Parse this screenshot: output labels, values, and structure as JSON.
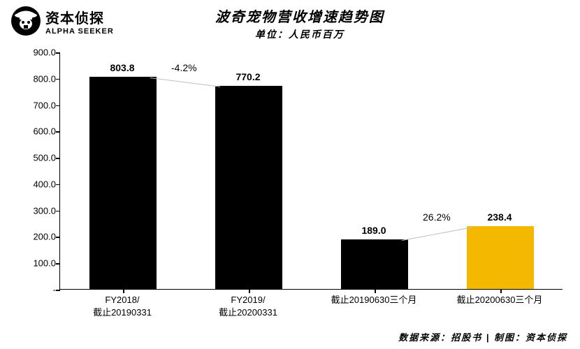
{
  "logo": {
    "cn": "资本侦探",
    "en": "ALPHA SEEKER"
  },
  "title": "波奇宠物营收增速趋势图",
  "subtitle": "单位：人民币百万",
  "chart": {
    "type": "bar",
    "ylim": [
      0,
      900
    ],
    "ytick_step": 100,
    "yticks": [
      "-",
      "100.0",
      "200.0",
      "300.0",
      "400.0",
      "500.0",
      "600.0",
      "700.0",
      "800.0",
      "900.0"
    ],
    "categories": [
      "FY2018/\n截止20190331",
      "FY2019/\n截止20200331",
      "截止20190630三个月",
      "截止20200630三个月"
    ],
    "values": [
      803.8,
      770.2,
      189.0,
      238.4
    ],
    "value_labels": [
      "803.8",
      "770.2",
      "189.0",
      "238.4"
    ],
    "bar_colors": [
      "#000000",
      "#000000",
      "#000000",
      "#f5b800"
    ],
    "growth_labels": [
      {
        "text": "-4.2%",
        "between": [
          0,
          1
        ]
      },
      {
        "text": "26.2%",
        "between": [
          2,
          3
        ]
      }
    ],
    "connector_color": "#bfbfbf",
    "background_color": "#ffffff",
    "axis_color": "#000000",
    "label_fontsize": 13,
    "value_fontsize": 14
  },
  "source": "数据来源：招股书 | 制图：资本侦探"
}
